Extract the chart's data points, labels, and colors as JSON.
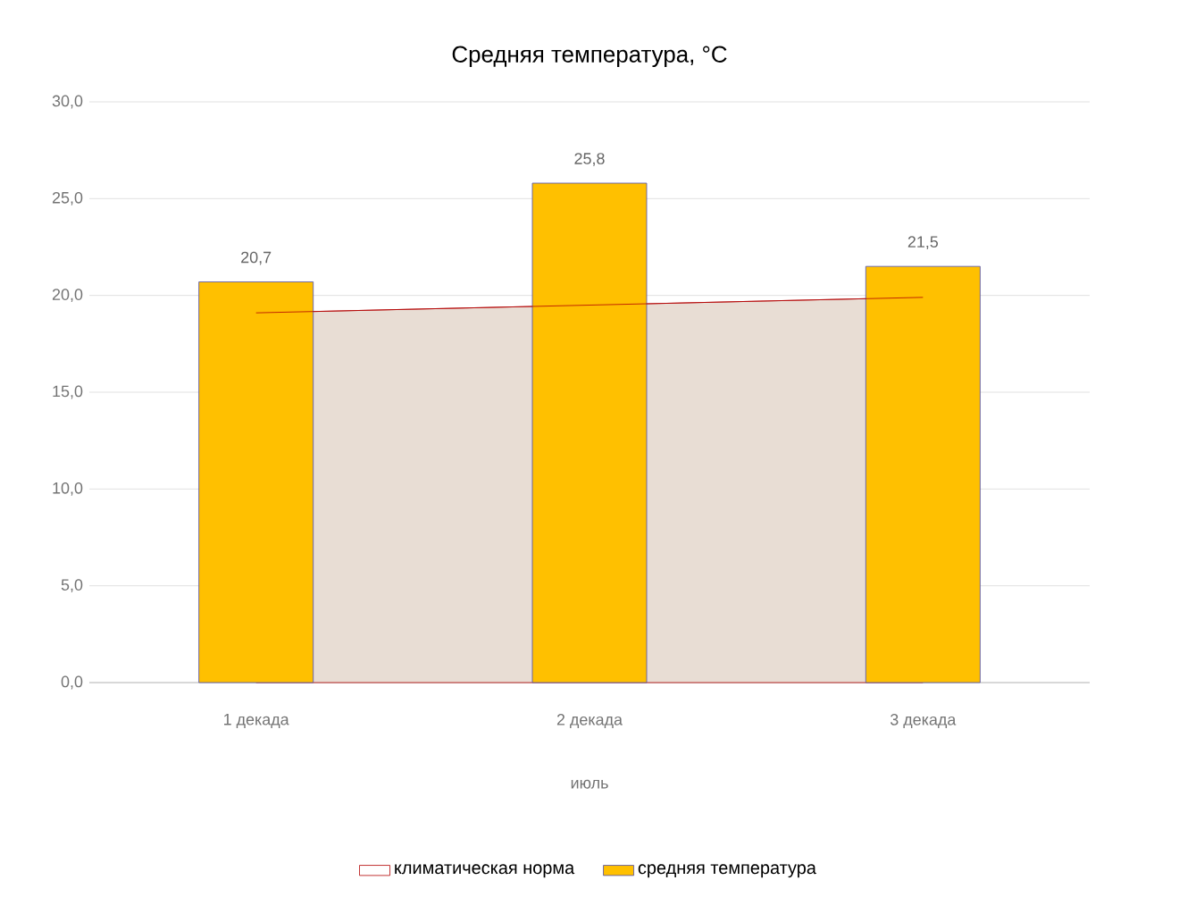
{
  "chart_data": {
    "type": "bar",
    "title": "Средняя  температура,  °C",
    "xlabel": "июль",
    "categories": [
      "1 декада",
      "2 декада",
      "3 декада"
    ],
    "series": [
      {
        "name": "климатическая норма",
        "type": "area",
        "color": "#e8ddd4",
        "values": [
          19.1,
          19.5,
          19.9
        ]
      },
      {
        "name": "средняя температура",
        "color": "#ffc000",
        "values": [
          20.7,
          25.8,
          21.5
        ],
        "value_labels": [
          "20,7",
          "25,8",
          "21,5"
        ]
      }
    ],
    "ylim": [
      0,
      30
    ],
    "yticks": [
      {
        "value": 0,
        "label": "0,0"
      },
      {
        "value": 5,
        "label": "5,0"
      },
      {
        "value": 10,
        "label": "10,0"
      },
      {
        "value": 15,
        "label": "15,0"
      },
      {
        "value": 20,
        "label": "20,0"
      },
      {
        "value": 25,
        "label": "25,0"
      },
      {
        "value": 30,
        "label": "30,0"
      }
    ],
    "grid": "y",
    "legend": "bottom"
  }
}
